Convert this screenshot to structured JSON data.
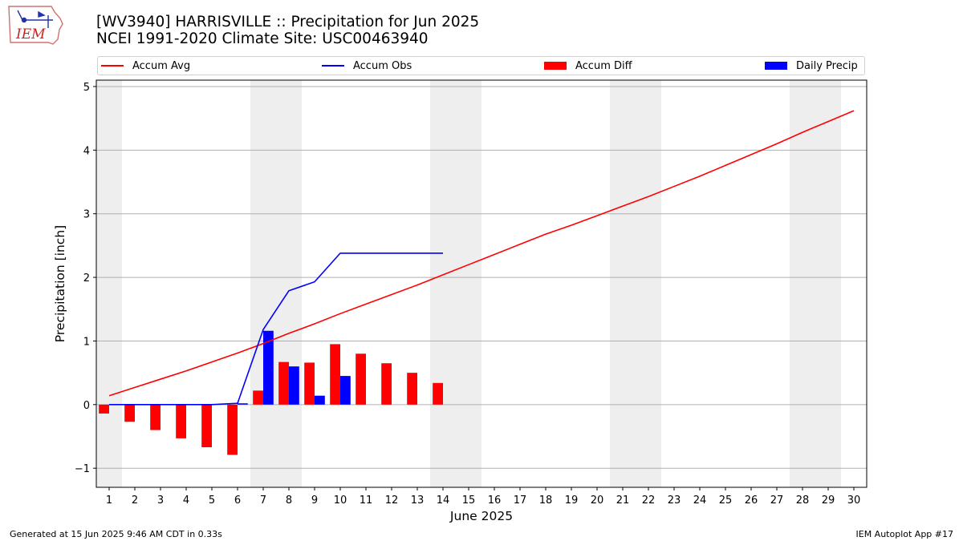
{
  "header": {
    "title_line1": "[WV3940] HARRISVILLE :: Precipitation for Jun 2025",
    "title_line2": "NCEI 1991-2020 Climate Site: USC00463940",
    "logo_text": "IEM"
  },
  "footer": {
    "generated": "Generated at 15 Jun 2025 9:46 AM CDT in 0.33s",
    "app": "IEM Autoplot App #17"
  },
  "chart_data": {
    "type": "bar",
    "title": "[WV3940] HARRISVILLE :: Precipitation for Jun 2025",
    "subtitle": "NCEI 1991-2020 Climate Site: USC00463940",
    "xlabel": "June 2025",
    "ylabel": "Precipitation [inch]",
    "xlim": [
      0.5,
      30.5
    ],
    "ylim": [
      -1.3,
      5.1
    ],
    "xticks": [
      1,
      2,
      3,
      4,
      5,
      6,
      7,
      8,
      9,
      10,
      11,
      12,
      13,
      14,
      15,
      16,
      17,
      18,
      19,
      20,
      21,
      22,
      23,
      24,
      25,
      26,
      27,
      28,
      29,
      30
    ],
    "yticks": [
      -1,
      0,
      1,
      2,
      3,
      4,
      5
    ],
    "ytick_labels": [
      "−1",
      "0",
      "1",
      "2",
      "3",
      "4",
      "5"
    ],
    "grid": "horizontal",
    "legend_position": "top",
    "weekend_shading": [
      [
        1
      ],
      [
        7,
        8
      ],
      [
        14,
        15
      ],
      [
        21,
        22
      ],
      [
        28,
        29
      ]
    ],
    "weekend_color": "#eeeeee",
    "series": [
      {
        "name": "Accum Avg",
        "kind": "line",
        "color": "#ff0000",
        "x": [
          1,
          2,
          3,
          4,
          5,
          6,
          7,
          8,
          9,
          10,
          11,
          12,
          13,
          14,
          15,
          16,
          17,
          18,
          19,
          20,
          21,
          22,
          23,
          24,
          25,
          26,
          27,
          28,
          29,
          30
        ],
        "values": [
          0.14,
          0.27,
          0.4,
          0.53,
          0.67,
          0.81,
          0.96,
          1.12,
          1.27,
          1.43,
          1.58,
          1.73,
          1.88,
          2.04,
          2.2,
          2.36,
          2.52,
          2.68,
          2.82,
          2.97,
          3.12,
          3.27,
          3.43,
          3.59,
          3.76,
          3.93,
          4.1,
          4.28,
          4.45,
          4.62
        ]
      },
      {
        "name": "Accum Obs",
        "kind": "line",
        "color": "#0000ff",
        "x": [
          1,
          2,
          3,
          4,
          5,
          6,
          7,
          8,
          9,
          10,
          11,
          12,
          13,
          14
        ],
        "values": [
          0.0,
          0.0,
          0.0,
          0.0,
          0.0,
          0.02,
          1.18,
          1.79,
          1.93,
          2.38,
          2.38,
          2.38,
          2.38,
          2.38
        ]
      },
      {
        "name": "Accum Diff",
        "kind": "bar",
        "color": "#ff0000",
        "offset": -0.2,
        "x": [
          1,
          2,
          3,
          4,
          5,
          6,
          7,
          8,
          9,
          10,
          11,
          12,
          13,
          14
        ],
        "values": [
          -0.14,
          -0.27,
          -0.4,
          -0.53,
          -0.67,
          -0.79,
          0.22,
          0.67,
          0.66,
          0.95,
          0.8,
          0.65,
          0.5,
          0.34
        ]
      },
      {
        "name": "Daily Precip",
        "kind": "bar",
        "color": "#0000ff",
        "offset": 0.2,
        "x": [
          1,
          2,
          3,
          4,
          5,
          6,
          7,
          8,
          9,
          10,
          11,
          12,
          13,
          14
        ],
        "values": [
          0,
          0,
          0,
          0,
          0,
          0.02,
          1.16,
          0.6,
          0.14,
          0.45,
          0,
          0,
          0,
          0
        ]
      }
    ]
  }
}
